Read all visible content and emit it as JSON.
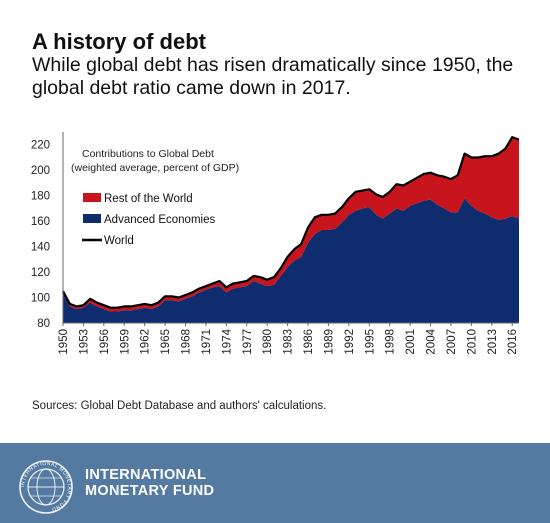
{
  "header": {
    "title": "A history of debt",
    "subtitle": "While global debt has risen dramatically since 1950, the global debt ratio came down in 2017."
  },
  "source": "Sources: Global Debt Database and authors' calculations.",
  "footer": {
    "org_line1": "INTERNATIONAL",
    "org_line2": "MONETARY FUND",
    "seal_text": "INTERNATIONAL MONETARY FUND",
    "seal_icon": "imf-seal-icon",
    "background": "#557aa2"
  },
  "chart_data": {
    "type": "area",
    "title": "Contributions to Global Debt",
    "subtitle": "(weighted average, percent of GDP)",
    "xlabel": "",
    "ylabel": "",
    "ylim": [
      80,
      230
    ],
    "yticks": [
      80,
      100,
      120,
      140,
      160,
      180,
      200,
      220
    ],
    "xticks": [
      1950,
      1953,
      1956,
      1959,
      1962,
      1965,
      1968,
      1971,
      1974,
      1977,
      1980,
      1983,
      1986,
      1989,
      1992,
      1995,
      1998,
      2001,
      2004,
      2007,
      2010,
      2013,
      2016
    ],
    "grid": false,
    "legend_position": "top-left",
    "x": [
      1950,
      1951,
      1952,
      1953,
      1954,
      1955,
      1956,
      1957,
      1958,
      1959,
      1960,
      1961,
      1962,
      1963,
      1964,
      1965,
      1966,
      1967,
      1968,
      1969,
      1970,
      1971,
      1972,
      1973,
      1974,
      1975,
      1976,
      1977,
      1978,
      1979,
      1980,
      1981,
      1982,
      1983,
      1984,
      1985,
      1986,
      1987,
      1988,
      1989,
      1990,
      1991,
      1992,
      1993,
      1994,
      1995,
      1996,
      1997,
      1998,
      1999,
      2000,
      2001,
      2002,
      2003,
      2004,
      2005,
      2006,
      2007,
      2008,
      2009,
      2010,
      2011,
      2012,
      2013,
      2014,
      2015,
      2016,
      2017
    ],
    "series": [
      {
        "name": "Advanced Economies",
        "color": "#0f2d6e",
        "values": [
          103,
          93,
          91,
          92,
          96,
          93,
          91,
          89,
          89,
          90,
          90,
          91,
          92,
          91,
          93,
          98,
          98,
          97,
          99,
          101,
          104,
          106,
          108,
          109,
          104,
          107,
          108,
          109,
          113,
          111,
          109,
          110,
          117,
          124,
          129,
          132,
          143,
          150,
          153,
          153,
          154,
          159,
          165,
          168,
          170,
          171,
          165,
          162,
          166,
          170,
          168,
          172,
          174,
          176,
          177,
          173,
          170,
          167,
          167,
          178,
          172,
          168,
          166,
          163,
          161,
          162,
          164,
          162
        ]
      },
      {
        "name": "Rest of the World",
        "color": "#c8141c",
        "values": [
          2,
          2,
          2,
          2,
          3,
          3,
          3,
          3,
          3,
          3,
          3,
          3,
          3,
          3,
          3,
          3,
          3,
          3,
          3,
          3,
          3,
          3,
          3,
          4,
          4,
          4,
          4,
          4,
          4,
          5,
          5,
          6,
          6,
          8,
          9,
          10,
          12,
          13,
          12,
          12,
          12,
          12,
          13,
          15,
          14,
          14,
          16,
          17,
          17,
          19,
          20,
          19,
          20,
          21,
          21,
          23,
          25,
          26,
          29,
          35,
          38,
          42,
          45,
          48,
          52,
          55,
          62,
          62
        ]
      },
      {
        "name": "World",
        "color": "#000000",
        "values": [
          105,
          95,
          93,
          94,
          99,
          96,
          94,
          92,
          92,
          93,
          93,
          94,
          95,
          94,
          96,
          101,
          101,
          100,
          102,
          104,
          107,
          109,
          111,
          113,
          108,
          111,
          112,
          113,
          117,
          116,
          114,
          116,
          123,
          132,
          138,
          142,
          155,
          163,
          165,
          165,
          166,
          171,
          178,
          183,
          184,
          185,
          181,
          179,
          183,
          189,
          188,
          191,
          194,
          197,
          198,
          196,
          195,
          193,
          196,
          213,
          210,
          210,
          211,
          211,
          213,
          217,
          226,
          224
        ]
      }
    ]
  }
}
